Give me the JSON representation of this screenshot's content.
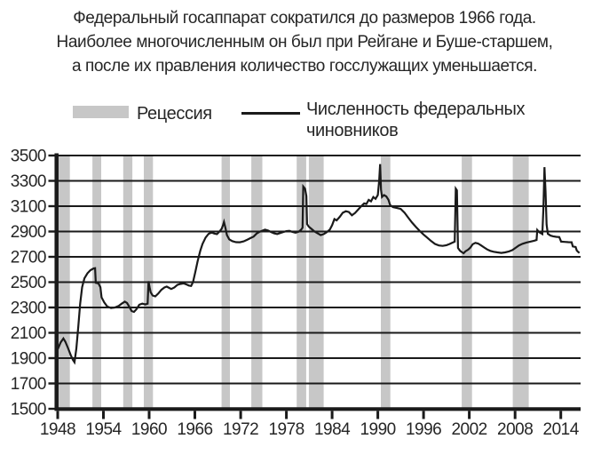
{
  "title": {
    "line1": "Федеральный госаппарат сократился до размеров 1966 года.",
    "line2": "Наиболее многочисленным он был при Рейгане и Буше-старшем,",
    "line3": "а после их правления количество госслужащих уменьшается."
  },
  "legend": {
    "recession_label": "Рецессия",
    "series_label_line1": "Численность федеральных",
    "series_label_line2": "чиновников"
  },
  "colors": {
    "recession": "#c7c7c7",
    "line": "#1a1a1a",
    "grid": "#1a1a1a",
    "text": "#262626",
    "background": "#ffffff"
  },
  "chart_data": {
    "type": "line",
    "title": "",
    "xlabel": "",
    "ylabel": "",
    "x_range": [
      1948,
      2016.6
    ],
    "y_range": [
      1500,
      3500
    ],
    "x_ticks": [
      1948,
      1954,
      1960,
      1966,
      1972,
      1978,
      1984,
      1990,
      1996,
      2002,
      2008,
      2014
    ],
    "y_ticks": [
      1500,
      1700,
      1900,
      2100,
      2300,
      2500,
      2700,
      2900,
      3100,
      3300,
      3500
    ],
    "grid": "horizontal",
    "legend_position": "top",
    "recessions": [
      [
        1948.0,
        1949.6
      ],
      [
        1952.55,
        1953.7
      ],
      [
        1956.6,
        1957.8
      ],
      [
        1959.3,
        1960.5
      ],
      [
        1969.5,
        1970.6
      ],
      [
        1973.4,
        1974.85
      ],
      [
        1979.35,
        1980.6
      ],
      [
        1980.95,
        1982.9
      ],
      [
        1990.4,
        1991.65
      ],
      [
        2001.0,
        2002.35
      ],
      [
        2007.7,
        2009.8
      ]
    ],
    "series": [
      {
        "name": "Численность федеральных чиновников",
        "points": [
          [
            1948.0,
            1970
          ],
          [
            1948.4,
            2025
          ],
          [
            1948.75,
            2055
          ],
          [
            1949.0,
            2030
          ],
          [
            1949.35,
            1980
          ],
          [
            1949.7,
            1925
          ],
          [
            1950.0,
            1885
          ],
          [
            1950.2,
            1868
          ],
          [
            1950.45,
            1975
          ],
          [
            1950.7,
            2150
          ],
          [
            1950.95,
            2330
          ],
          [
            1951.2,
            2460
          ],
          [
            1951.5,
            2530
          ],
          [
            1951.9,
            2570
          ],
          [
            1952.3,
            2595
          ],
          [
            1952.7,
            2608
          ],
          [
            1952.9,
            2610
          ],
          [
            1953.0,
            2495
          ],
          [
            1953.35,
            2490
          ],
          [
            1953.6,
            2460
          ],
          [
            1953.75,
            2380
          ],
          [
            1954.1,
            2340
          ],
          [
            1954.5,
            2308
          ],
          [
            1955.0,
            2296
          ],
          [
            1955.5,
            2300
          ],
          [
            1956.0,
            2312
          ],
          [
            1956.4,
            2330
          ],
          [
            1956.8,
            2346
          ],
          [
            1957.1,
            2336
          ],
          [
            1957.4,
            2305
          ],
          [
            1957.7,
            2272
          ],
          [
            1958.0,
            2265
          ],
          [
            1958.35,
            2288
          ],
          [
            1958.7,
            2322
          ],
          [
            1959.1,
            2330
          ],
          [
            1959.5,
            2324
          ],
          [
            1959.8,
            2330
          ],
          [
            1959.92,
            2508
          ],
          [
            1960.05,
            2460
          ],
          [
            1960.2,
            2420
          ],
          [
            1960.45,
            2395
          ],
          [
            1960.8,
            2388
          ],
          [
            1961.2,
            2410
          ],
          [
            1961.6,
            2440
          ],
          [
            1962.0,
            2458
          ],
          [
            1962.3,
            2465
          ],
          [
            1962.6,
            2455
          ],
          [
            1962.9,
            2446
          ],
          [
            1963.3,
            2458
          ],
          [
            1963.7,
            2478
          ],
          [
            1964.1,
            2486
          ],
          [
            1964.5,
            2490
          ],
          [
            1964.9,
            2482
          ],
          [
            1965.2,
            2473
          ],
          [
            1965.5,
            2470
          ],
          [
            1965.75,
            2500
          ],
          [
            1966.05,
            2580
          ],
          [
            1966.35,
            2665
          ],
          [
            1966.7,
            2748
          ],
          [
            1967.0,
            2802
          ],
          [
            1967.4,
            2852
          ],
          [
            1967.8,
            2882
          ],
          [
            1968.2,
            2892
          ],
          [
            1968.55,
            2884
          ],
          [
            1968.9,
            2880
          ],
          [
            1969.2,
            2898
          ],
          [
            1969.5,
            2920
          ],
          [
            1969.7,
            2952
          ],
          [
            1969.82,
            2975
          ],
          [
            1970.0,
            2930
          ],
          [
            1970.2,
            2872
          ],
          [
            1970.5,
            2838
          ],
          [
            1970.9,
            2824
          ],
          [
            1971.4,
            2816
          ],
          [
            1971.9,
            2815
          ],
          [
            1972.4,
            2822
          ],
          [
            1972.9,
            2836
          ],
          [
            1973.3,
            2848
          ],
          [
            1973.7,
            2860
          ],
          [
            1974.1,
            2884
          ],
          [
            1974.5,
            2898
          ],
          [
            1974.9,
            2908
          ],
          [
            1975.2,
            2915
          ],
          [
            1975.6,
            2908
          ],
          [
            1976.0,
            2896
          ],
          [
            1976.4,
            2885
          ],
          [
            1976.8,
            2880
          ],
          [
            1977.2,
            2888
          ],
          [
            1977.6,
            2896
          ],
          [
            1978.0,
            2903
          ],
          [
            1978.4,
            2905
          ],
          [
            1978.8,
            2897
          ],
          [
            1979.2,
            2890
          ],
          [
            1979.6,
            2898
          ],
          [
            1979.95,
            2915
          ],
          [
            1980.12,
            2930
          ],
          [
            1980.22,
            3255
          ],
          [
            1980.45,
            3238
          ],
          [
            1980.62,
            3180
          ],
          [
            1980.72,
            2958
          ],
          [
            1980.95,
            2938
          ],
          [
            1981.3,
            2920
          ],
          [
            1981.7,
            2900
          ],
          [
            1982.1,
            2885
          ],
          [
            1982.5,
            2872
          ],
          [
            1982.9,
            2880
          ],
          [
            1983.3,
            2895
          ],
          [
            1983.7,
            2915
          ],
          [
            1984.0,
            2950
          ],
          [
            1984.3,
            2998
          ],
          [
            1984.6,
            2988
          ],
          [
            1985.0,
            3016
          ],
          [
            1985.4,
            3048
          ],
          [
            1985.8,
            3060
          ],
          [
            1986.2,
            3054
          ],
          [
            1986.6,
            3028
          ],
          [
            1987.0,
            3046
          ],
          [
            1987.4,
            3072
          ],
          [
            1987.8,
            3098
          ],
          [
            1988.2,
            3122
          ],
          [
            1988.5,
            3117
          ],
          [
            1988.8,
            3150
          ],
          [
            1989.1,
            3138
          ],
          [
            1989.4,
            3172
          ],
          [
            1989.7,
            3158
          ],
          [
            1990.0,
            3188
          ],
          [
            1990.17,
            3300
          ],
          [
            1990.3,
            3432
          ],
          [
            1990.42,
            3230
          ],
          [
            1990.55,
            3172
          ],
          [
            1990.8,
            3188
          ],
          [
            1991.1,
            3177
          ],
          [
            1991.4,
            3150
          ],
          [
            1991.62,
            3108
          ],
          [
            1992.0,
            3092
          ],
          [
            1992.5,
            3085
          ],
          [
            1993.0,
            3078
          ],
          [
            1993.5,
            3048
          ],
          [
            1994.0,
            3008
          ],
          [
            1994.5,
            2970
          ],
          [
            1995.0,
            2936
          ],
          [
            1995.5,
            2904
          ],
          [
            1996.0,
            2876
          ],
          [
            1996.5,
            2850
          ],
          [
            1997.0,
            2824
          ],
          [
            1997.5,
            2802
          ],
          [
            1998.0,
            2790
          ],
          [
            1998.5,
            2786
          ],
          [
            1999.0,
            2792
          ],
          [
            1999.4,
            2801
          ],
          [
            1999.8,
            2812
          ],
          [
            2000.08,
            2820
          ],
          [
            2000.22,
            3238
          ],
          [
            2000.38,
            3225
          ],
          [
            2000.52,
            2770
          ],
          [
            2000.78,
            2748
          ],
          [
            2001.05,
            2736
          ],
          [
            2001.25,
            2728
          ],
          [
            2001.5,
            2744
          ],
          [
            2001.85,
            2757
          ],
          [
            2002.15,
            2774
          ],
          [
            2002.45,
            2800
          ],
          [
            2002.8,
            2810
          ],
          [
            2003.15,
            2805
          ],
          [
            2003.55,
            2790
          ],
          [
            2003.95,
            2774
          ],
          [
            2004.35,
            2758
          ],
          [
            2004.75,
            2747
          ],
          [
            2005.2,
            2740
          ],
          [
            2005.7,
            2735
          ],
          [
            2006.2,
            2731
          ],
          [
            2006.7,
            2735
          ],
          [
            2007.2,
            2743
          ],
          [
            2007.65,
            2753
          ],
          [
            2008.05,
            2770
          ],
          [
            2008.5,
            2790
          ],
          [
            2009.0,
            2803
          ],
          [
            2009.5,
            2813
          ],
          [
            2010.0,
            2820
          ],
          [
            2010.5,
            2827
          ],
          [
            2010.82,
            2833
          ],
          [
            2010.92,
            2912
          ],
          [
            2011.15,
            2896
          ],
          [
            2011.4,
            2886
          ],
          [
            2011.58,
            2880
          ],
          [
            2011.72,
            3080
          ],
          [
            2011.86,
            3408
          ],
          [
            2012.0,
            3220
          ],
          [
            2012.14,
            2955
          ],
          [
            2012.3,
            2882
          ],
          [
            2012.65,
            2868
          ],
          [
            2013.0,
            2862
          ],
          [
            2013.4,
            2858
          ],
          [
            2013.8,
            2856
          ],
          [
            2014.05,
            2820
          ],
          [
            2014.5,
            2818
          ],
          [
            2015.0,
            2816
          ],
          [
            2015.42,
            2815
          ],
          [
            2015.58,
            2782
          ],
          [
            2015.95,
            2778
          ],
          [
            2016.1,
            2750
          ],
          [
            2016.3,
            2738
          ],
          [
            2016.45,
            2730
          ]
        ]
      }
    ]
  }
}
